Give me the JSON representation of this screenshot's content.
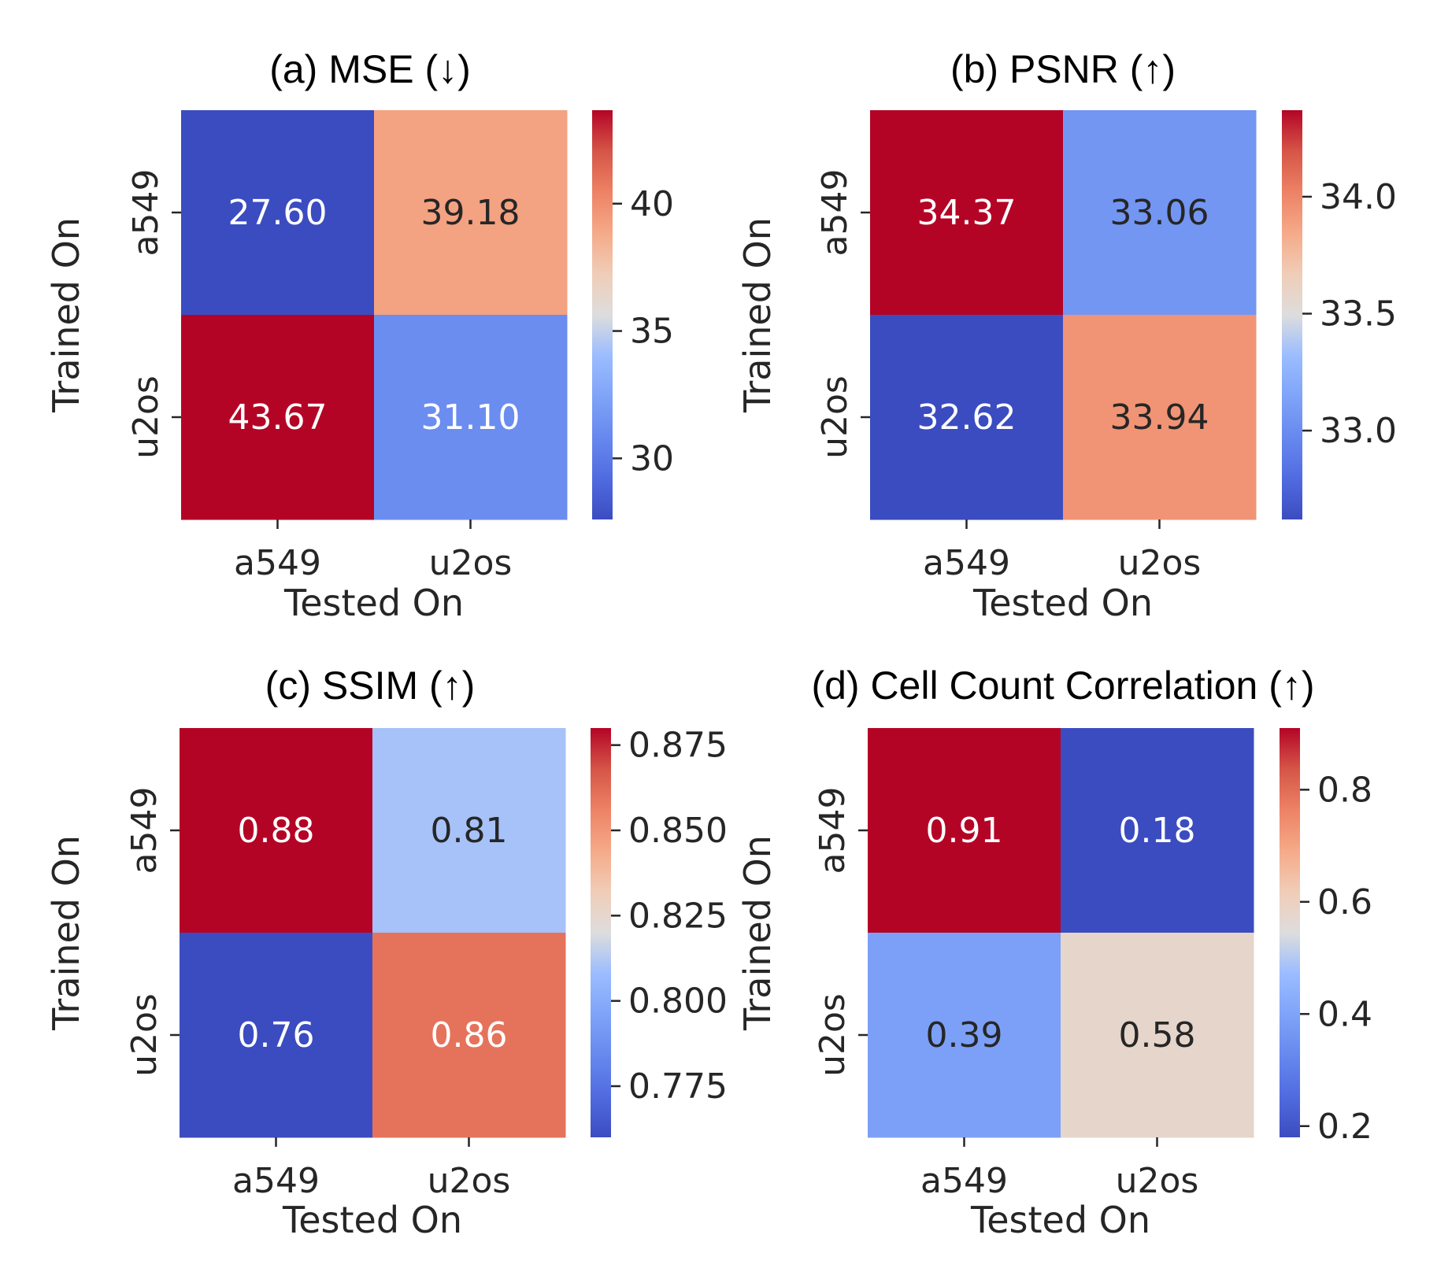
{
  "chart_data": [
    {
      "type": "heatmap",
      "title": "(a) MSE (↓)",
      "xlabel": "Tested On",
      "ylabel": "Trained On",
      "x_categories": [
        "a549",
        "u2os"
      ],
      "y_categories": [
        "a549",
        "u2os"
      ],
      "values": [
        [
          27.6,
          39.18
        ],
        [
          43.67,
          31.1
        ]
      ],
      "value_labels": [
        [
          "27.60",
          "39.18"
        ],
        [
          "43.67",
          "31.10"
        ]
      ],
      "colormap": "coolwarm",
      "colorbar": {
        "range": [
          27.6,
          43.67
        ],
        "ticks": [
          30,
          35,
          40
        ],
        "tick_labels": [
          "30",
          "35",
          "40"
        ]
      }
    },
    {
      "type": "heatmap",
      "title": "(b) PSNR (↑)",
      "xlabel": "Tested On",
      "ylabel": "Trained On",
      "x_categories": [
        "a549",
        "u2os"
      ],
      "y_categories": [
        "a549",
        "u2os"
      ],
      "values": [
        [
          34.37,
          33.06
        ],
        [
          32.62,
          33.94
        ]
      ],
      "value_labels": [
        [
          "34.37",
          "33.06"
        ],
        [
          "32.62",
          "33.94"
        ]
      ],
      "colormap": "coolwarm",
      "colorbar": {
        "range": [
          32.62,
          34.37
        ],
        "ticks": [
          33.0,
          33.5,
          34.0
        ],
        "tick_labels": [
          "33.0",
          "33.5",
          "34.0"
        ]
      }
    },
    {
      "type": "heatmap",
      "title": "(c) SSIM (↑)",
      "xlabel": "Tested On",
      "ylabel": "Trained On",
      "x_categories": [
        "a549",
        "u2os"
      ],
      "y_categories": [
        "a549",
        "u2os"
      ],
      "values": [
        [
          0.88,
          0.81
        ],
        [
          0.76,
          0.86
        ]
      ],
      "value_labels": [
        [
          "0.88",
          "0.81"
        ],
        [
          "0.76",
          "0.86"
        ]
      ],
      "colormap": "coolwarm",
      "colorbar": {
        "range": [
          0.76,
          0.88
        ],
        "ticks": [
          0.775,
          0.8,
          0.825,
          0.85,
          0.875
        ],
        "tick_labels": [
          "0.775",
          "0.800",
          "0.825",
          "0.850",
          "0.875"
        ]
      }
    },
    {
      "type": "heatmap",
      "title": "(d) Cell Count Correlation (↑)",
      "xlabel": "Tested On",
      "ylabel": "Trained On",
      "x_categories": [
        "a549",
        "u2os"
      ],
      "y_categories": [
        "a549",
        "u2os"
      ],
      "values": [
        [
          0.91,
          0.18
        ],
        [
          0.39,
          0.58
        ]
      ],
      "value_labels": [
        [
          "0.91",
          "0.18"
        ],
        [
          "0.39",
          "0.58"
        ]
      ],
      "colormap": "coolwarm",
      "colorbar": {
        "range": [
          0.18,
          0.91
        ],
        "ticks": [
          0.2,
          0.4,
          0.6,
          0.8
        ],
        "tick_labels": [
          "0.2",
          "0.4",
          "0.6",
          "0.8"
        ]
      }
    }
  ]
}
